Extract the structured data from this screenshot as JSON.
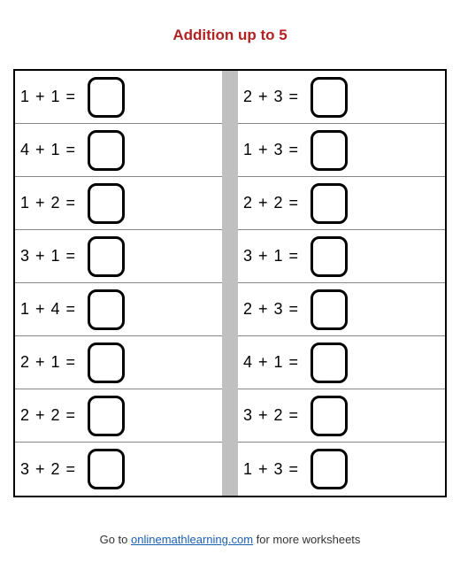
{
  "title": "Addition up to 5",
  "title_color": "#b22222",
  "title_fontsize": 17,
  "worksheet": {
    "border_color": "#000000",
    "divider_color": "#c0c0c0",
    "row_border_color": "#888888",
    "answer_box": {
      "border_color": "#000000",
      "border_width": 3,
      "border_radius": 10,
      "width": 42,
      "height": 46,
      "background": "#ffffff"
    },
    "problem_fontsize": 18,
    "left_column": [
      "1 + 1 =",
      "4 + 1 =",
      "1 + 2 =",
      "3 + 1 =",
      "1 + 4 =",
      "2 + 1 =",
      "2 + 2 =",
      "3 + 2 ="
    ],
    "right_column": [
      "2 + 3 =",
      "1 + 3 =",
      "2 + 2 =",
      "3 + 1 =",
      "2 + 3 =",
      "4 + 1 =",
      "3 + 2 =",
      "1 + 3 ="
    ]
  },
  "footer": {
    "prefix": "Go to ",
    "link_text": "onlinemathlearning.com",
    "suffix": " for more worksheets",
    "link_color": "#1a5fb4"
  }
}
